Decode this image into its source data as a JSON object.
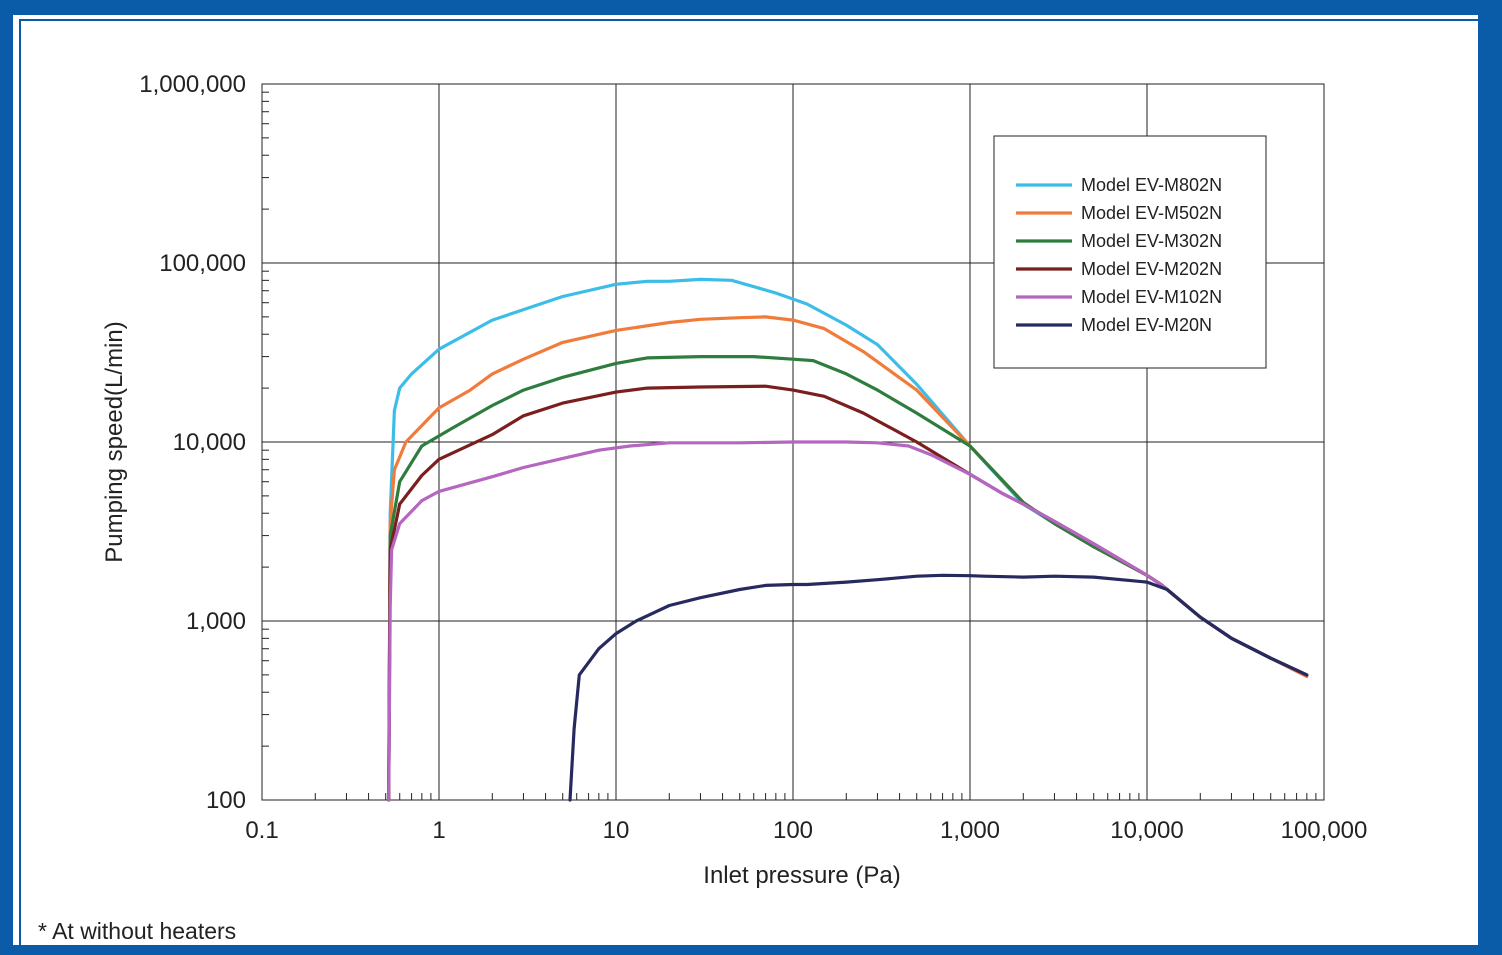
{
  "chart_data": {
    "type": "line",
    "xlabel": "Inlet pressure (Pa)",
    "ylabel": "Pumping speed(L/min)",
    "x_scale": "log",
    "y_scale": "log",
    "xlim": [
      0.1,
      100000
    ],
    "ylim": [
      100,
      1000000
    ],
    "x_ticks": [
      0.1,
      1,
      10,
      100,
      1000,
      10000,
      100000
    ],
    "x_tick_labels": [
      "0.1",
      "1",
      "10",
      "100",
      "1,000",
      "10,000",
      "100,000"
    ],
    "y_ticks": [
      100,
      1000,
      10000,
      100000,
      1000000
    ],
    "y_tick_labels": [
      "100",
      "1,000",
      "10,000",
      "100,000",
      "1,000,000"
    ],
    "grid": true,
    "legend_position": "top-right",
    "series": [
      {
        "name": "Model EV-M802N",
        "color": "#3cbde8",
        "points": [
          [
            0.52,
            100
          ],
          [
            0.53,
            4000
          ],
          [
            0.56,
            15000
          ],
          [
            0.6,
            20000
          ],
          [
            0.7,
            24000
          ],
          [
            1,
            33000
          ],
          [
            2,
            48000
          ],
          [
            5,
            65000
          ],
          [
            10,
            76000
          ],
          [
            15,
            79000
          ],
          [
            20,
            79000
          ],
          [
            30,
            81000
          ],
          [
            45,
            80000
          ],
          [
            80,
            68000
          ],
          [
            120,
            59000
          ],
          [
            200,
            45000
          ],
          [
            300,
            35000
          ],
          [
            500,
            21000
          ],
          [
            1000,
            9500
          ],
          [
            2000,
            4500
          ],
          [
            3000,
            3500
          ],
          [
            5000,
            2600
          ],
          [
            10000,
            1800
          ],
          [
            12000,
            1600
          ],
          [
            20000,
            1050
          ],
          [
            30000,
            800
          ],
          [
            50000,
            620
          ],
          [
            80000,
            500
          ]
        ]
      },
      {
        "name": "Model EV-M502N",
        "color": "#f07b3a",
        "points": [
          [
            0.52,
            100
          ],
          [
            0.53,
            3500
          ],
          [
            0.56,
            7000
          ],
          [
            0.65,
            10000
          ],
          [
            1,
            15500
          ],
          [
            1.5,
            19500
          ],
          [
            2,
            24000
          ],
          [
            3,
            29000
          ],
          [
            5,
            36000
          ],
          [
            10,
            42000
          ],
          [
            20,
            46500
          ],
          [
            30,
            48500
          ],
          [
            50,
            49500
          ],
          [
            70,
            50000
          ],
          [
            100,
            48000
          ],
          [
            150,
            43000
          ],
          [
            250,
            32000
          ],
          [
            500,
            19500
          ],
          [
            1000,
            9500
          ],
          [
            2000,
            4600
          ],
          [
            3000,
            3500
          ],
          [
            5000,
            2600
          ],
          [
            10000,
            1800
          ],
          [
            12000,
            1600
          ],
          [
            20000,
            1050
          ],
          [
            30000,
            800
          ],
          [
            50000,
            620
          ],
          [
            80000,
            490
          ]
        ]
      },
      {
        "name": "Model EV-M302N",
        "color": "#2e7d3e",
        "points": [
          [
            0.52,
            100
          ],
          [
            0.53,
            3000
          ],
          [
            0.6,
            6000
          ],
          [
            0.8,
            9500
          ],
          [
            1.2,
            12000
          ],
          [
            2,
            16000
          ],
          [
            3,
            19500
          ],
          [
            5,
            23000
          ],
          [
            10,
            27500
          ],
          [
            15,
            29500
          ],
          [
            30,
            30000
          ],
          [
            60,
            30000
          ],
          [
            100,
            29000
          ],
          [
            130,
            28500
          ],
          [
            200,
            24000
          ],
          [
            300,
            19500
          ],
          [
            500,
            14500
          ],
          [
            1000,
            9500
          ],
          [
            2000,
            4600
          ],
          [
            3000,
            3500
          ],
          [
            5000,
            2600
          ],
          [
            10000,
            1800
          ],
          [
            12000,
            1600
          ],
          [
            20000,
            1050
          ],
          [
            30000,
            800
          ],
          [
            50000,
            620
          ],
          [
            80000,
            500
          ]
        ]
      },
      {
        "name": "Model EV-M202N",
        "color": "#7a1e1e",
        "points": [
          [
            0.52,
            100
          ],
          [
            0.53,
            2500
          ],
          [
            0.6,
            4500
          ],
          [
            0.8,
            6500
          ],
          [
            1,
            8000
          ],
          [
            2,
            11000
          ],
          [
            3,
            14000
          ],
          [
            5,
            16500
          ],
          [
            10,
            19000
          ],
          [
            15,
            20000
          ],
          [
            30,
            20300
          ],
          [
            70,
            20500
          ],
          [
            100,
            19500
          ],
          [
            150,
            18000
          ],
          [
            250,
            14500
          ],
          [
            500,
            10000
          ],
          [
            1000,
            6600
          ],
          [
            1500,
            5200
          ],
          [
            2000,
            4500
          ],
          [
            3000,
            3600
          ],
          [
            5000,
            2700
          ],
          [
            10000,
            1800
          ],
          [
            12000,
            1600
          ],
          [
            20000,
            1050
          ],
          [
            30000,
            800
          ],
          [
            50000,
            620
          ],
          [
            80000,
            500
          ]
        ]
      },
      {
        "name": "Model EV-M102N",
        "color": "#b566c0",
        "points": [
          [
            0.52,
            100
          ],
          [
            0.53,
            1200
          ],
          [
            0.54,
            2500
          ],
          [
            0.6,
            3500
          ],
          [
            0.8,
            4700
          ],
          [
            1,
            5300
          ],
          [
            2,
            6400
          ],
          [
            3,
            7200
          ],
          [
            5,
            8100
          ],
          [
            8,
            9000
          ],
          [
            12,
            9500
          ],
          [
            20,
            9900
          ],
          [
            50,
            9900
          ],
          [
            100,
            10000
          ],
          [
            200,
            10000
          ],
          [
            300,
            9900
          ],
          [
            450,
            9500
          ],
          [
            600,
            8500
          ],
          [
            1000,
            6600
          ],
          [
            1500,
            5200
          ],
          [
            2000,
            4500
          ],
          [
            3000,
            3600
          ],
          [
            5000,
            2700
          ],
          [
            10000,
            1800
          ],
          [
            12000,
            1600
          ],
          [
            20000,
            1050
          ],
          [
            30000,
            800
          ],
          [
            50000,
            620
          ],
          [
            80000,
            500
          ]
        ]
      },
      {
        "name": "Model EV-M20N",
        "color": "#262a5e",
        "points": [
          [
            5.5,
            100
          ],
          [
            5.8,
            250
          ],
          [
            6.2,
            500
          ],
          [
            8,
            700
          ],
          [
            10,
            850
          ],
          [
            13,
            1000
          ],
          [
            16,
            1100
          ],
          [
            20,
            1220
          ],
          [
            30,
            1350
          ],
          [
            50,
            1500
          ],
          [
            70,
            1580
          ],
          [
            100,
            1600
          ],
          [
            120,
            1600
          ],
          [
            200,
            1650
          ],
          [
            300,
            1700
          ],
          [
            500,
            1780
          ],
          [
            700,
            1800
          ],
          [
            1000,
            1790
          ],
          [
            1200,
            1780
          ],
          [
            2000,
            1760
          ],
          [
            3000,
            1780
          ],
          [
            5000,
            1760
          ],
          [
            10000,
            1650
          ],
          [
            13000,
            1500
          ],
          [
            20000,
            1050
          ],
          [
            30000,
            800
          ],
          [
            50000,
            620
          ],
          [
            80000,
            500
          ]
        ]
      }
    ]
  },
  "footnote": "* At without heaters"
}
